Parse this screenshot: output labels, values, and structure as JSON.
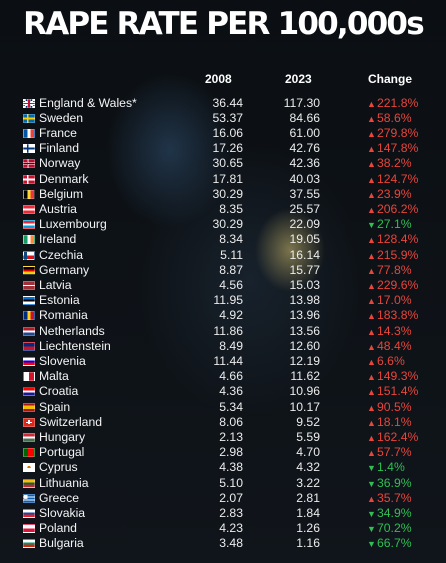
{
  "title": "RAPE RATE PER 100,000s",
  "chart_data": {
    "type": "table",
    "columns": [
      "2008",
      "2023",
      "Change"
    ],
    "colors": {
      "increase": "#e8453b",
      "decrease": "#2fbf53"
    },
    "rows": [
      {
        "country": "England & Wales*",
        "flag": "uk",
        "v2008": "36.44",
        "v2023": "117.30",
        "dir": "up",
        "change": "221.8%"
      },
      {
        "country": "Sweden",
        "flag": "sweden",
        "v2008": "53.37",
        "v2023": "84.66",
        "dir": "up",
        "change": "58.6%"
      },
      {
        "country": "France",
        "flag": "france",
        "v2008": "16.06",
        "v2023": "61.00",
        "dir": "up",
        "change": "279.8%"
      },
      {
        "country": "Finland",
        "flag": "finland",
        "v2008": "17.26",
        "v2023": "42.76",
        "dir": "up",
        "change": "147.8%"
      },
      {
        "country": "Norway",
        "flag": "norway",
        "v2008": "30.65",
        "v2023": "42.36",
        "dir": "up",
        "change": "38.2%"
      },
      {
        "country": "Denmark",
        "flag": "denmark",
        "v2008": "17.81",
        "v2023": "40.03",
        "dir": "up",
        "change": "124.7%"
      },
      {
        "country": "Belgium",
        "flag": "belgium",
        "v2008": "30.29",
        "v2023": "37.55",
        "dir": "up",
        "change": "23.9%"
      },
      {
        "country": "Austria",
        "flag": "austria",
        "v2008": "8.35",
        "v2023": "25.57",
        "dir": "up",
        "change": "206.2%"
      },
      {
        "country": "Luxembourg",
        "flag": "luxembourg",
        "v2008": "30.29",
        "v2023": "22.09",
        "dir": "down",
        "change": "27.1%"
      },
      {
        "country": "Ireland",
        "flag": "ireland",
        "v2008": "8.34",
        "v2023": "19.05",
        "dir": "up",
        "change": "128.4%"
      },
      {
        "country": "Czechia",
        "flag": "czechia",
        "v2008": "5.11",
        "v2023": "16.14",
        "dir": "up",
        "change": "215.9%"
      },
      {
        "country": "Germany",
        "flag": "germany",
        "v2008": "8.87",
        "v2023": "15.77",
        "dir": "up",
        "change": "77.8%"
      },
      {
        "country": "Latvia",
        "flag": "latvia",
        "v2008": "4.56",
        "v2023": "15.03",
        "dir": "up",
        "change": "229.6%"
      },
      {
        "country": "Estonia",
        "flag": "estonia",
        "v2008": "11.95",
        "v2023": "13.98",
        "dir": "up",
        "change": "17.0%"
      },
      {
        "country": "Romania",
        "flag": "romania",
        "v2008": "4.92",
        "v2023": "13.96",
        "dir": "up",
        "change": "183.8%"
      },
      {
        "country": "Netherlands",
        "flag": "netherlands",
        "v2008": "11.86",
        "v2023": "13.56",
        "dir": "up",
        "change": "14.3%"
      },
      {
        "country": "Liechtenstein",
        "flag": "liechtenstein",
        "v2008": "8.49",
        "v2023": "12.60",
        "dir": "up",
        "change": "48.4%"
      },
      {
        "country": "Slovenia",
        "flag": "slovenia",
        "v2008": "11.44",
        "v2023": "12.19",
        "dir": "up",
        "change": "6.6%"
      },
      {
        "country": "Malta",
        "flag": "malta",
        "v2008": "4.66",
        "v2023": "11.62",
        "dir": "up",
        "change": "149.3%"
      },
      {
        "country": "Croatia",
        "flag": "croatia",
        "v2008": "4.36",
        "v2023": "10.96",
        "dir": "up",
        "change": "151.4%"
      },
      {
        "country": "Spain",
        "flag": "spain",
        "v2008": "5.34",
        "v2023": "10.17",
        "dir": "up",
        "change": "90.5%"
      },
      {
        "country": "Switzerland",
        "flag": "switzerland",
        "v2008": "8.06",
        "v2023": "9.52",
        "dir": "up",
        "change": "18.1%"
      },
      {
        "country": "Hungary",
        "flag": "hungary",
        "v2008": "2.13",
        "v2023": "5.59",
        "dir": "up",
        "change": "162.4%"
      },
      {
        "country": "Portugal",
        "flag": "portugal",
        "v2008": "2.98",
        "v2023": "4.70",
        "dir": "up",
        "change": "57.7%"
      },
      {
        "country": "Cyprus",
        "flag": "cyprus",
        "v2008": "4.38",
        "v2023": "4.32",
        "dir": "down",
        "change": "1.4%"
      },
      {
        "country": "Lithuania",
        "flag": "lithuania",
        "v2008": "5.10",
        "v2023": "3.22",
        "dir": "down",
        "change": "36.9%"
      },
      {
        "country": "Greece",
        "flag": "greece",
        "v2008": "2.07",
        "v2023": "2.81",
        "dir": "up",
        "change": "35.7%"
      },
      {
        "country": "Slovakia",
        "flag": "slovakia",
        "v2008": "2.83",
        "v2023": "1.84",
        "dir": "down",
        "change": "34.9%"
      },
      {
        "country": "Poland",
        "flag": "poland",
        "v2008": "4.23",
        "v2023": "1.26",
        "dir": "down",
        "change": "70.2%"
      },
      {
        "country": "Bulgaria",
        "flag": "bulgaria",
        "v2008": "3.48",
        "v2023": "1.16",
        "dir": "down",
        "change": "66.7%"
      }
    ]
  }
}
